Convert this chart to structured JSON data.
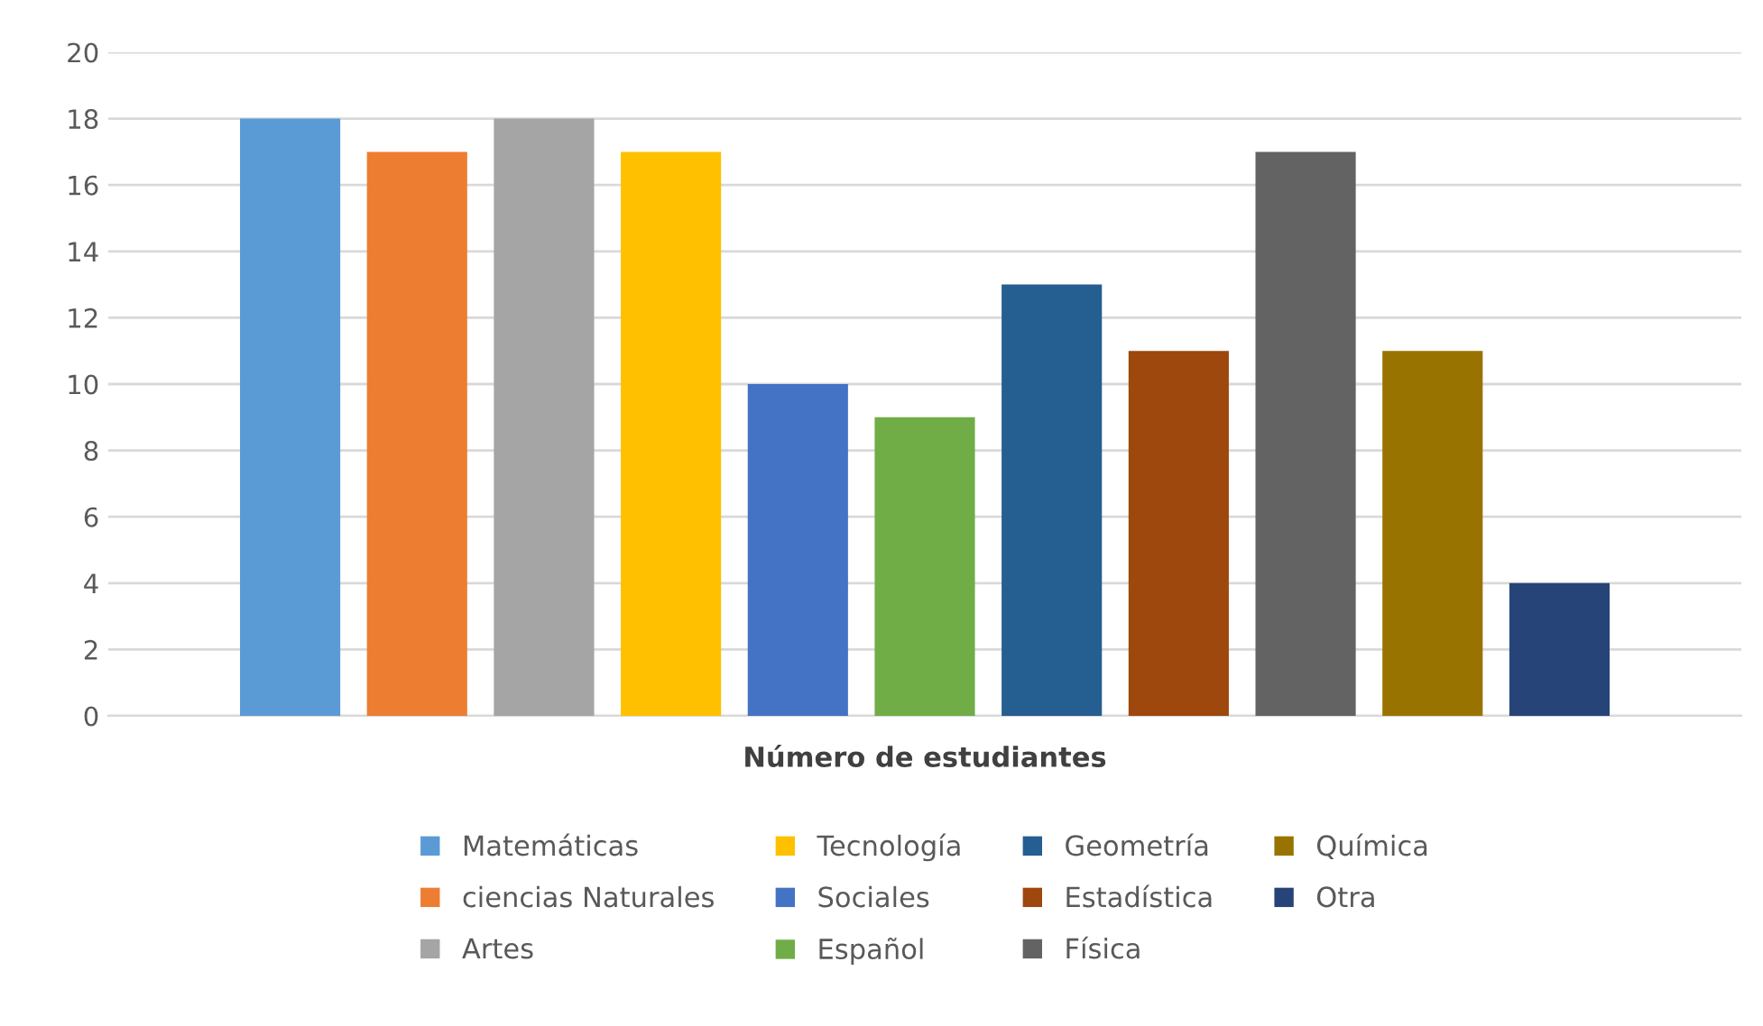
{
  "chart_data": {
    "type": "bar",
    "categories": [
      "Número de estudiantes"
    ],
    "series": [
      {
        "name": "Matemáticas",
        "color": "#5b9bd5",
        "values": [
          18
        ]
      },
      {
        "name": "ciencias Naturales",
        "color": "#ed7d31",
        "values": [
          17
        ]
      },
      {
        "name": "Artes",
        "color": "#a5a5a5",
        "values": [
          18
        ]
      },
      {
        "name": "Tecnología",
        "color": "#ffc000",
        "values": [
          17
        ]
      },
      {
        "name": "Sociales",
        "color": "#4472c4",
        "values": [
          10
        ]
      },
      {
        "name": "Español",
        "color": "#70ad47",
        "values": [
          9
        ]
      },
      {
        "name": "Geometría",
        "color": "#255e91",
        "values": [
          13
        ]
      },
      {
        "name": "Estadística",
        "color": "#9e480e",
        "values": [
          11
        ]
      },
      {
        "name": "Física",
        "color": "#636363",
        "values": [
          17
        ]
      },
      {
        "name": "Química",
        "color": "#997300",
        "values": [
          11
        ]
      },
      {
        "name": "Otra",
        "color": "#264478",
        "values": [
          4
        ]
      }
    ],
    "ylim": [
      0,
      20
    ],
    "yticks": [
      0,
      2,
      4,
      6,
      8,
      10,
      12,
      14,
      16,
      18,
      20
    ],
    "grid": "y",
    "legend": "bottom"
  }
}
